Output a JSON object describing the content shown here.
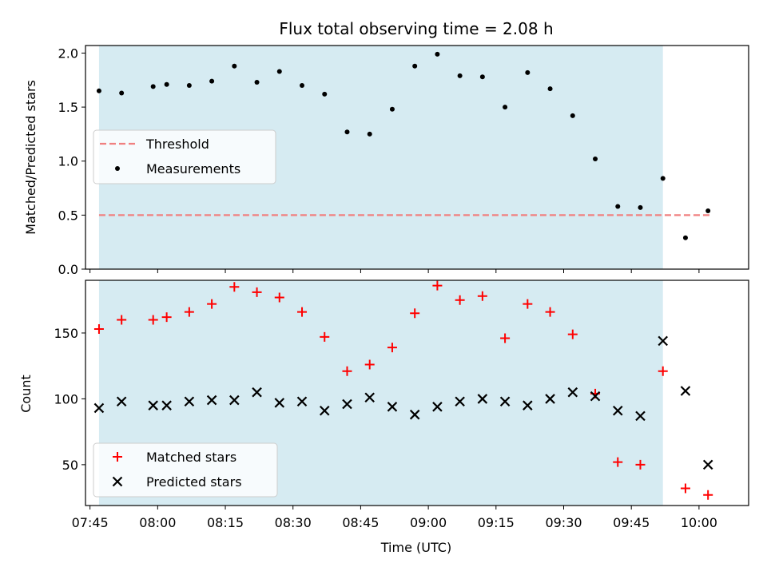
{
  "chart_data": [
    {
      "type": "scatter",
      "title": "Flux total observing time = 2.08 h",
      "xlabel": "",
      "ylabel": "Matched/Predicted stars",
      "ylim": [
        0,
        2.07
      ],
      "yticks": [
        "0.0",
        "0.5",
        "1.0",
        "1.5",
        "2.0"
      ],
      "shaded_interval": [
        "07:47",
        "09:52"
      ],
      "legend_position": "center-left",
      "series": [
        {
          "name": "Threshold",
          "style": "dashed-line",
          "color": "#f08080",
          "x": [
            "07:47",
            "10:03"
          ],
          "y": [
            0.5,
            0.5
          ]
        },
        {
          "name": "Measurements",
          "style": "dot",
          "color": "#000000",
          "x": [
            "07:47",
            "07:52",
            "07:59",
            "08:02",
            "08:07",
            "08:12",
            "08:17",
            "08:22",
            "08:27",
            "08:32",
            "08:37",
            "08:42",
            "08:47",
            "08:52",
            "08:57",
            "09:02",
            "09:07",
            "09:12",
            "09:17",
            "09:22",
            "09:27",
            "09:32",
            "09:37",
            "09:42",
            "09:47",
            "09:52",
            "09:57",
            "10:02"
          ],
          "y": [
            1.65,
            1.63,
            1.69,
            1.71,
            1.7,
            1.74,
            1.88,
            1.73,
            1.83,
            1.7,
            1.62,
            1.27,
            1.25,
            1.48,
            1.88,
            1.99,
            1.79,
            1.78,
            1.5,
            1.82,
            1.67,
            1.42,
            1.02,
            0.58,
            0.57,
            0.84,
            0.29,
            0.54
          ]
        }
      ]
    },
    {
      "type": "scatter",
      "title": "",
      "xlabel": "Time (UTC)",
      "ylabel": "Count",
      "ylim": [
        19,
        190
      ],
      "yticks": [
        "50",
        "100",
        "150"
      ],
      "xticks": [
        "07:45",
        "08:00",
        "08:15",
        "08:30",
        "08:45",
        "09:00",
        "09:15",
        "09:30",
        "09:45",
        "10:00"
      ],
      "xlim": [
        "07:44",
        "10:11"
      ],
      "shaded_interval": [
        "07:47",
        "09:52"
      ],
      "legend_position": "lower-left",
      "series": [
        {
          "name": "Matched stars",
          "marker": "plus",
          "color": "#ff0000",
          "x": [
            "07:47",
            "07:52",
            "07:59",
            "08:02",
            "08:07",
            "08:12",
            "08:17",
            "08:22",
            "08:27",
            "08:32",
            "08:37",
            "08:42",
            "08:47",
            "08:52",
            "08:57",
            "09:02",
            "09:07",
            "09:12",
            "09:17",
            "09:22",
            "09:27",
            "09:32",
            "09:37",
            "09:42",
            "09:47",
            "09:52",
            "09:57",
            "10:02"
          ],
          "y": [
            153,
            160,
            160,
            162,
            166,
            172,
            185,
            181,
            177,
            166,
            147,
            121,
            126,
            139,
            165,
            186,
            175,
            178,
            146,
            172,
            166,
            149,
            104,
            52,
            50,
            121,
            32,
            27
          ]
        },
        {
          "name": "Predicted stars",
          "marker": "x",
          "color": "#000000",
          "x": [
            "07:47",
            "07:52",
            "07:59",
            "08:02",
            "08:07",
            "08:12",
            "08:17",
            "08:22",
            "08:27",
            "08:32",
            "08:37",
            "08:42",
            "08:47",
            "08:52",
            "08:57",
            "09:02",
            "09:07",
            "09:12",
            "09:17",
            "09:22",
            "09:27",
            "09:32",
            "09:37",
            "09:42",
            "09:47",
            "09:52",
            "09:57",
            "10:02"
          ],
          "y": [
            93,
            98,
            95,
            95,
            98,
            99,
            99,
            105,
            97,
            98,
            91,
            96,
            101,
            94,
            88,
            94,
            98,
            100,
            98,
            95,
            100,
            105,
            102,
            91,
            87,
            144,
            106,
            50
          ]
        }
      ]
    }
  ]
}
